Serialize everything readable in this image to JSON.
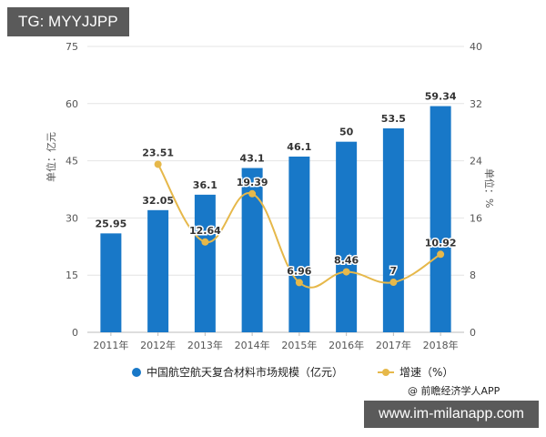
{
  "overlay": {
    "tg_badge": "TG: MYYJJPP",
    "site_badge": "www.im-milanapp.com",
    "source": "@ 前瞻经济学人APP"
  },
  "colors": {
    "bar": "#1878c8",
    "line": "#e6b84a",
    "grid": "#e4e4e4",
    "axis_text": "#555555"
  },
  "chart_data": {
    "type": "bar",
    "title": "",
    "categories": [
      "2011年",
      "2012年",
      "2013年",
      "2014年",
      "2015年",
      "2016年",
      "2017年",
      "2018年"
    ],
    "series": [
      {
        "name": "中国航空航天复合材料市场规模（亿元）",
        "type": "bar",
        "axis": "left",
        "values": [
          25.95,
          32.05,
          36.1,
          43.1,
          46.1,
          50,
          53.5,
          59.34
        ],
        "labels": [
          "25.95",
          "32.05",
          "36.1",
          "43.1",
          "46.1",
          "50",
          "53.5",
          "59.34"
        ]
      },
      {
        "name": "增速（%）",
        "type": "line",
        "axis": "right",
        "values": [
          null,
          23.51,
          12.64,
          19.39,
          6.96,
          8.46,
          7,
          10.92
        ],
        "labels": [
          "",
          "23.51",
          "12.64",
          "19.39",
          "6.96",
          "8.46",
          "7",
          "10.92"
        ]
      }
    ],
    "ylabel": "单位：亿元",
    "ylabel_right": "单位：%",
    "ylim": [
      0,
      75
    ],
    "ylim_right": [
      0,
      40
    ],
    "yticks": [
      "0",
      "15",
      "30",
      "45",
      "60",
      "75"
    ],
    "yticks_right": [
      "0",
      "8",
      "16",
      "24",
      "32",
      "40"
    ],
    "grid": true,
    "legend_position": "bottom",
    "legend": [
      "中国航空航天复合材料市场规模（亿元）",
      "增速（%）"
    ]
  }
}
